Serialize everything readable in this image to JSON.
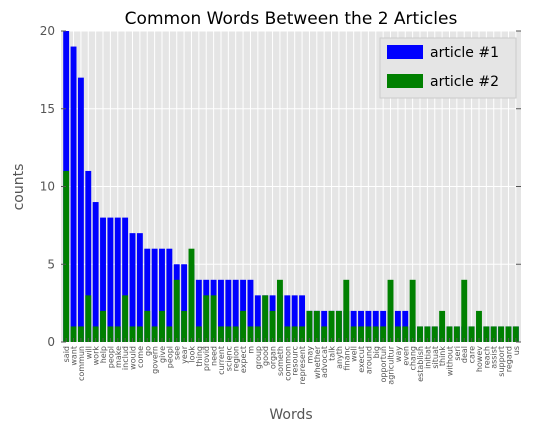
{
  "chart_data": {
    "type": "bar",
    "title": "Common Words Between the 2 Articles",
    "xlabel": "Words",
    "ylabel": "counts",
    "ylim": [
      0,
      20
    ],
    "yticks": [
      "0",
      "5",
      "10",
      "15",
      "20"
    ],
    "grid": true,
    "legend_position": "top-right",
    "categories": [
      "said",
      "want",
      "commun",
      "will",
      "work",
      "help",
      "peopl",
      "make",
      "includ",
      "would",
      "come",
      "go",
      "govern",
      "give",
      "peopl",
      "see",
      "year",
      "look",
      "thing",
      "provid",
      "need",
      "current",
      "scienc",
      "region",
      "expect",
      "m",
      "group",
      "good",
      "organ",
      "someth",
      "common",
      "resourc",
      "represent",
      "may",
      "whether",
      "advocat",
      "talk",
      "anyth",
      "financ",
      "well",
      "execut",
      "around",
      "big",
      "opportun",
      "agricultur",
      "way",
      "even",
      "chang",
      "establish",
      "initiat",
      "situat",
      "think",
      "without",
      "seri",
      "deal",
      "care",
      "howev",
      "reach",
      "assist",
      "support",
      "regard",
      "us"
    ],
    "series": [
      {
        "name": "article #1",
        "color": "#0000ff",
        "values": [
          20,
          19,
          17,
          11,
          9,
          8,
          8,
          8,
          8,
          7,
          7,
          6,
          6,
          6,
          6,
          5,
          5,
          5,
          4,
          4,
          4,
          4,
          4,
          4,
          4,
          4,
          3,
          3,
          3,
          3,
          3,
          3,
          3,
          2,
          2,
          2,
          2,
          2,
          2,
          2,
          2,
          2,
          2,
          2,
          2,
          2,
          2,
          1,
          1,
          1,
          1,
          1,
          1,
          1,
          1,
          1,
          1,
          1,
          1,
          1,
          1,
          1
        ]
      },
      {
        "name": "article #2",
        "color": "#008000",
        "values": [
          11,
          1,
          1,
          3,
          1,
          2,
          1,
          1,
          3,
          1,
          1,
          2,
          1,
          2,
          1,
          4,
          2,
          6,
          1,
          3,
          3,
          1,
          1,
          1,
          2,
          1,
          1,
          3,
          2,
          4,
          1,
          1,
          1,
          2,
          2,
          1,
          2,
          2,
          4,
          1,
          1,
          1,
          1,
          1,
          4,
          1,
          1,
          4,
          1,
          1,
          1,
          2,
          1,
          1,
          4,
          1,
          2,
          1,
          1,
          1,
          1,
          1
        ]
      }
    ]
  }
}
